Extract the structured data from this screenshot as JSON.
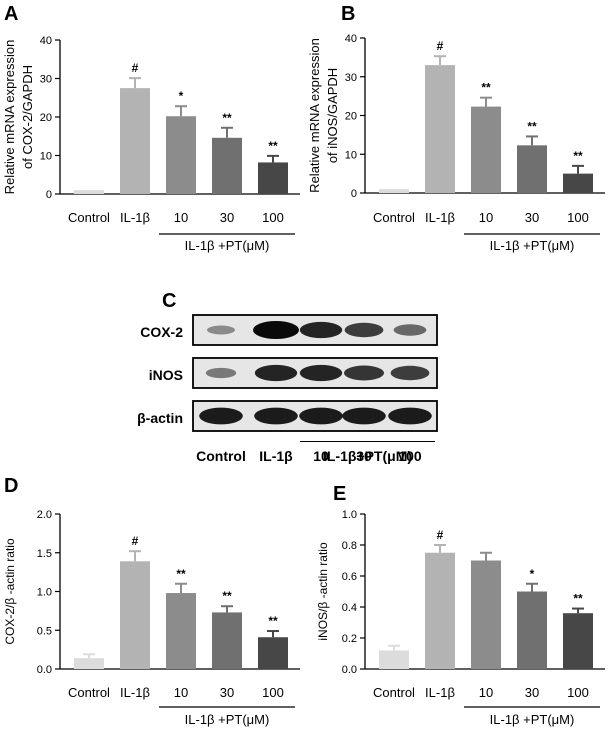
{
  "figure": {
    "group_label": "IL-1β +PT(μM)",
    "group_label_blot": "IL-1β+PT(μM)"
  },
  "chart_data": [
    {
      "panel": "A",
      "type": "bar",
      "categories": [
        "Control",
        "IL-1β",
        "10",
        "30",
        "100"
      ],
      "values": [
        1,
        27.5,
        20.2,
        14.6,
        8.2
      ],
      "errors": [
        0,
        2.6,
        2.6,
        2.6,
        1.7
      ],
      "significance": [
        "",
        "#",
        "*",
        "**",
        "**"
      ],
      "ylabel": "Relative mRNA expression of COX-2/GAPDH",
      "ylim": [
        0,
        40
      ],
      "yticks": [
        "0",
        "10",
        "20",
        "30",
        "40"
      ],
      "bar_colors": [
        "#dcdcdc",
        "#b3b3b3",
        "#8c8c8c",
        "#707070",
        "#474747"
      ],
      "group_label": "IL-1β +PT(μM)"
    },
    {
      "panel": "B",
      "type": "bar",
      "categories": [
        "Control",
        "IL-1β",
        "10",
        "30",
        "100"
      ],
      "values": [
        1,
        33,
        22.3,
        12.3,
        5
      ],
      "errors": [
        0,
        2.3,
        2.3,
        2.3,
        2
      ],
      "significance": [
        "",
        "#",
        "**",
        "**",
        "**"
      ],
      "ylabel": "Relative mRNA expression of iNOS/GAPDH",
      "ylim": [
        0,
        40
      ],
      "yticks": [
        "0",
        "10",
        "20",
        "30",
        "40"
      ],
      "bar_colors": [
        "#dcdcdc",
        "#b3b3b3",
        "#8c8c8c",
        "#707070",
        "#474747"
      ],
      "group_label": "IL-1β +PT(μM)"
    },
    {
      "panel": "D",
      "type": "bar",
      "categories": [
        "Control",
        "IL-1β",
        "10",
        "30",
        "100"
      ],
      "values": [
        0.14,
        1.39,
        0.98,
        0.73,
        0.41
      ],
      "errors": [
        0.05,
        0.13,
        0.12,
        0.08,
        0.08
      ],
      "significance": [
        "",
        "#",
        "**",
        "**",
        "**"
      ],
      "ylabel": "COX-2/β -actin ratio",
      "ylim": [
        0,
        2.0
      ],
      "yticks": [
        "0.0",
        "0.5",
        "1.0",
        "1.5",
        "2.0"
      ],
      "bar_colors": [
        "#dcdcdc",
        "#b3b3b3",
        "#8c8c8c",
        "#707070",
        "#474747"
      ],
      "group_label": "IL-1β +PT(μM)"
    },
    {
      "panel": "E",
      "type": "bar",
      "categories": [
        "Control",
        "IL-1β",
        "10",
        "30",
        "100"
      ],
      "values": [
        0.12,
        0.75,
        0.7,
        0.5,
        0.36
      ],
      "errors": [
        0.03,
        0.05,
        0.05,
        0.05,
        0.03
      ],
      "significance": [
        "",
        "#",
        "",
        "*",
        "**"
      ],
      "ylabel": "iNOS/β -actin ratio",
      "ylim": [
        0,
        1.0
      ],
      "yticks": [
        "0.0",
        "0.2",
        "0.4",
        "0.6",
        "0.8",
        "1.0"
      ],
      "bar_colors": [
        "#dcdcdc",
        "#b3b3b3",
        "#8c8c8c",
        "#707070",
        "#474747"
      ],
      "group_label": "IL-1β +PT(μM)"
    }
  ],
  "blot": {
    "panel": "C",
    "rows": [
      "COX-2",
      "iNOS",
      "β-actin"
    ],
    "lanes": [
      "Control",
      "IL-1β",
      "10",
      "30",
      "100"
    ],
    "group_label": "IL-1β+PT(μM)",
    "band_intensity": [
      [
        0.25,
        1.0,
        0.85,
        0.7,
        0.45
      ],
      [
        0.35,
        0.85,
        0.85,
        0.75,
        0.7
      ],
      [
        0.9,
        0.9,
        0.9,
        0.9,
        0.9
      ]
    ]
  }
}
